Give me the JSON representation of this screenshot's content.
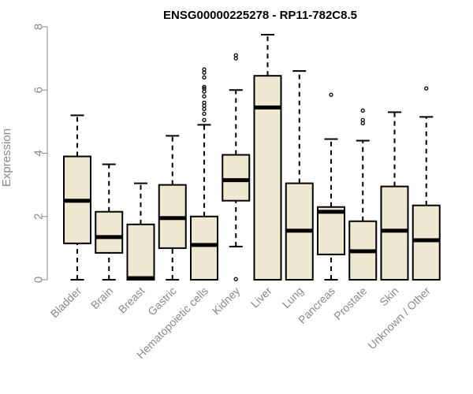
{
  "chart_data": {
    "type": "box",
    "title": "ENSG00000225278 - RP11-782C8.5",
    "ylabel": "Expression",
    "ylim": [
      0,
      8
    ],
    "yticks": [
      0,
      2,
      4,
      6,
      8
    ],
    "box_color": "#efe8d1",
    "categories": [
      "Bladder",
      "Brain",
      "Breast",
      "Gastric",
      "Hematopoietic cells",
      "Kidney",
      "Liver",
      "Lung",
      "Pancreas",
      "Prostate",
      "Skin",
      "Unknown / Other"
    ],
    "boxes": [
      {
        "category": "Bladder",
        "whisker_low": 0,
        "q1": 1.15,
        "median": 2.5,
        "q3": 3.9,
        "whisker_high": 5.2,
        "outliers": []
      },
      {
        "category": "Brain",
        "whisker_low": 0,
        "q1": 0.85,
        "median": 1.35,
        "q3": 2.15,
        "whisker_high": 3.65,
        "outliers": []
      },
      {
        "category": "Breast",
        "whisker_low": 0,
        "q1": 0,
        "median": 0.05,
        "q3": 1.75,
        "whisker_high": 3.05,
        "outliers": []
      },
      {
        "category": "Gastric",
        "whisker_low": 0,
        "q1": 1.0,
        "median": 1.95,
        "q3": 3.0,
        "whisker_high": 4.55,
        "outliers": []
      },
      {
        "category": "Hematopoietic cells",
        "whisker_low": 0,
        "q1": 0,
        "median": 1.1,
        "q3": 2.0,
        "whisker_high": 4.9,
        "outliers": [
          5.05,
          5.25,
          5.4,
          5.5,
          5.6,
          5.8,
          5.95,
          6.05,
          6.1,
          6.4,
          6.55,
          6.65
        ]
      },
      {
        "category": "Kidney",
        "whisker_low": 1.05,
        "q1": 2.5,
        "median": 3.15,
        "q3": 3.95,
        "whisker_high": 6.0,
        "outliers": [
          0.02,
          7.0,
          7.1
        ]
      },
      {
        "category": "Liver",
        "whisker_low": 0,
        "q1": 0,
        "median": 5.45,
        "q3": 6.45,
        "whisker_high": 7.75,
        "outliers": []
      },
      {
        "category": "Lung",
        "whisker_low": 0,
        "q1": 0,
        "median": 1.55,
        "q3": 3.05,
        "whisker_high": 6.6,
        "outliers": []
      },
      {
        "category": "Pancreas",
        "whisker_low": 0,
        "q1": 0.8,
        "median": 2.15,
        "q3": 2.3,
        "whisker_high": 4.45,
        "outliers": [
          5.85
        ]
      },
      {
        "category": "Prostate",
        "whisker_low": 0,
        "q1": 0,
        "median": 0.9,
        "q3": 1.85,
        "whisker_high": 4.4,
        "outliers": [
          4.95,
          5.05,
          5.35
        ]
      },
      {
        "category": "Skin",
        "whisker_low": 0,
        "q1": 0,
        "median": 1.55,
        "q3": 2.95,
        "whisker_high": 5.3,
        "outliers": []
      },
      {
        "category": "Unknown / Other",
        "whisker_low": 0,
        "q1": 0,
        "median": 1.25,
        "q3": 2.35,
        "whisker_high": 5.15,
        "outliers": [
          6.05
        ]
      }
    ]
  }
}
